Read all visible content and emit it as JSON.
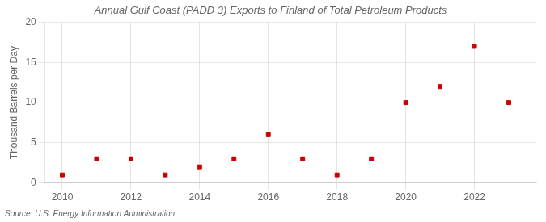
{
  "chart_data": {
    "type": "scatter",
    "title": "Annual Gulf Coast (PADD 3) Exports to Finland of Total Petroleum Products",
    "ylabel": "Thousand Barrels per Day",
    "annotation": "Source: U.S. Energy Information Administration",
    "x": [
      2010,
      2011,
      2012,
      2013,
      2014,
      2015,
      2016,
      2017,
      2018,
      2019,
      2020,
      2021,
      2022,
      2023
    ],
    "values": [
      1,
      3,
      3,
      1,
      2,
      3,
      6,
      3,
      1,
      3,
      10,
      12,
      17,
      10
    ],
    "color": "#cc0000",
    "marker": "square",
    "xlim": [
      2009.5,
      2023.8
    ],
    "xticks": [
      2010,
      2012,
      2014,
      2016,
      2018,
      2020,
      2022
    ],
    "ylim": [
      0,
      20
    ],
    "yticks": [
      0,
      5,
      10,
      15,
      20
    ],
    "grid": true
  }
}
